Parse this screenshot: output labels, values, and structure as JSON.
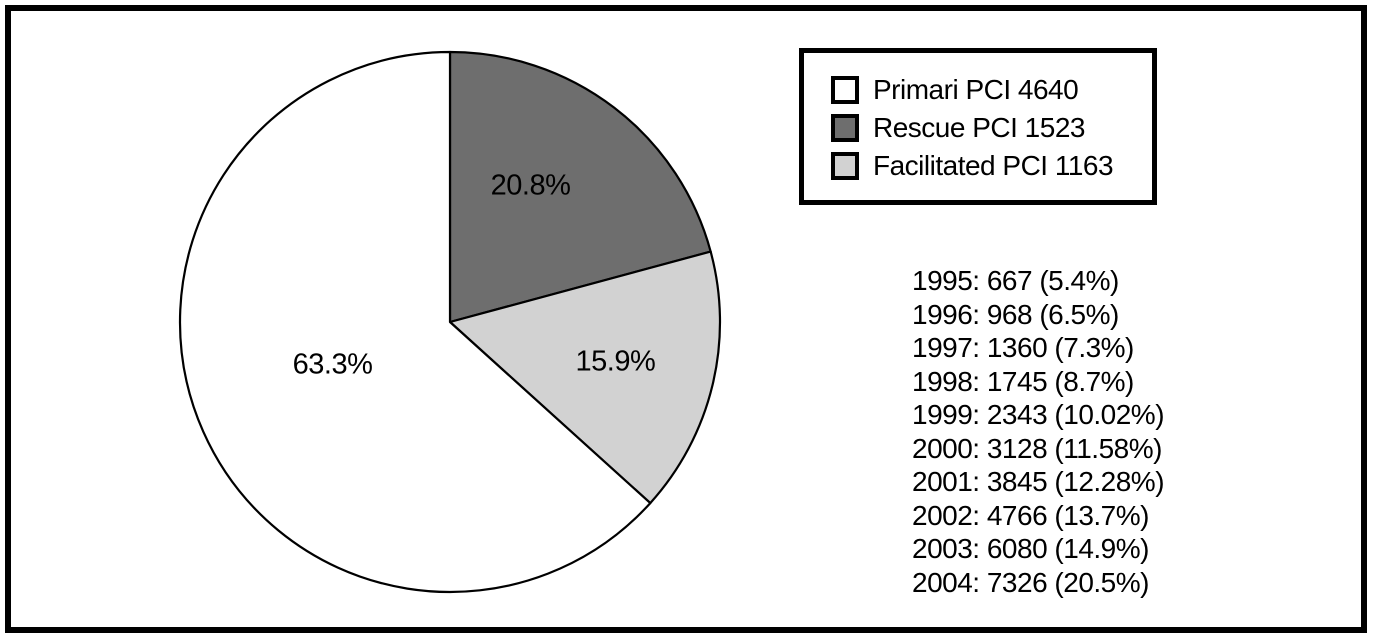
{
  "figure": {
    "background": "#ffffff",
    "border_color": "#000000"
  },
  "chart_data": {
    "type": "pie",
    "title": "",
    "start_angle": "12-oclock",
    "direction": "clockwise",
    "slices": [
      {
        "name": "Rescue PCI",
        "value": 1523,
        "percent": 20.8,
        "label": "20.8%",
        "color": "#6e6e6e"
      },
      {
        "name": "Facilitated PCI",
        "value": 1163,
        "percent": 15.9,
        "label": "15.9%",
        "color": "#d2d2d2"
      },
      {
        "name": "Primari PCI",
        "value": 4640,
        "percent": 63.3,
        "label": "63.3%",
        "color": "#ffffff"
      }
    ],
    "legend": {
      "position": "top-right",
      "entries": [
        {
          "label": "Primari PCI 4640",
          "color": "#ffffff"
        },
        {
          "label": "Rescue PCI 1523",
          "color": "#6e6e6e"
        },
        {
          "label": "Facilitated PCI 1163",
          "color": "#d2d2d2"
        }
      ]
    },
    "annotations": [
      "1995: 667 (5.4%)",
      "1996: 968 (6.5%)",
      "1997: 1360 (7.3%)",
      "1998: 1745 (8.7%)",
      "1999: 2343 (10.02%)",
      "2000: 3128 (11.58%)",
      "2001: 3845 (12.28%)",
      "2002: 4766 (13.7%)",
      "2003: 6080 (14.9%)",
      "2004: 7326 (20.5%)"
    ]
  }
}
